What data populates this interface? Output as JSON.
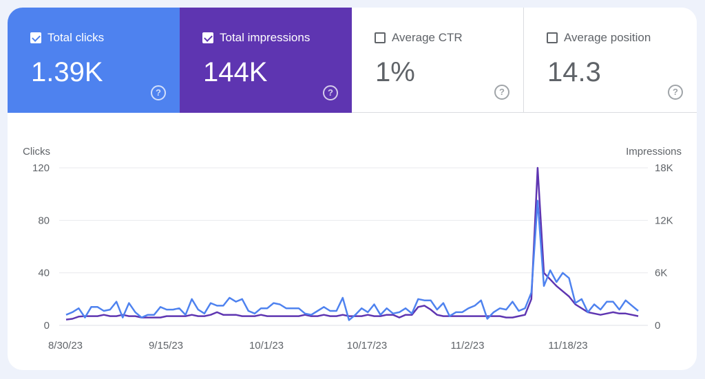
{
  "metrics": [
    {
      "label": "Total clicks",
      "value": "1.39K",
      "checked": true,
      "icon": "checkbox-checked-icon"
    },
    {
      "label": "Total impressions",
      "value": "144K",
      "checked": true,
      "icon": "checkbox-checked-icon"
    },
    {
      "label": "Average CTR",
      "value": "1%",
      "checked": false,
      "icon": "checkbox-empty-icon"
    },
    {
      "label": "Average position",
      "value": "14.3",
      "checked": false,
      "icon": "checkbox-empty-icon"
    }
  ],
  "help_icon": "help-circle-icon",
  "help_glyph": "?",
  "chart_data": {
    "type": "line",
    "left_axis_label": "Clicks",
    "right_axis_label": "Impressions",
    "left_ticks": [
      "0",
      "40",
      "80",
      "120"
    ],
    "left_range": [
      0,
      120
    ],
    "right_ticks": [
      "0",
      "6K",
      "12K",
      "18K"
    ],
    "right_range": [
      0,
      18000
    ],
    "x_ticks": [
      "8/30/23",
      "9/15/23",
      "10/1/23",
      "10/17/23",
      "11/2/23",
      "11/18/23"
    ],
    "grid": true,
    "colors": {
      "clicks": "#4e82ef",
      "impressions": "#5e35b1",
      "grid": "#e8eaed"
    },
    "series": [
      {
        "key": "clicks",
        "values": [
          8,
          10,
          13,
          6,
          14,
          14,
          11,
          12,
          18,
          6,
          17,
          10,
          6,
          8,
          8,
          14,
          12,
          12,
          13,
          8,
          20,
          12,
          9,
          17,
          15,
          15,
          21,
          18,
          20,
          11,
          9,
          13,
          13,
          17,
          16,
          13,
          13,
          13,
          9,
          8,
          11,
          14,
          11,
          11,
          21,
          4,
          8,
          13,
          10,
          16,
          8,
          13,
          9,
          10,
          13,
          9,
          20,
          19,
          19,
          12,
          17,
          7,
          10,
          10,
          13,
          15,
          19,
          5,
          10,
          13,
          12,
          18,
          11,
          13,
          25,
          95,
          30,
          42,
          33,
          40,
          36,
          17,
          20,
          10,
          16,
          12,
          18,
          18,
          12,
          19,
          15,
          11
        ]
      },
      {
        "key": "impressions",
        "values": [
          660,
          750,
          1000,
          1050,
          1050,
          1050,
          1200,
          1050,
          1050,
          1200,
          1050,
          1050,
          900,
          900,
          900,
          900,
          1050,
          1050,
          1050,
          1050,
          1200,
          1050,
          1050,
          1200,
          1500,
          1200,
          1200,
          1200,
          1050,
          1050,
          1050,
          1200,
          1050,
          1050,
          1050,
          1050,
          1050,
          1050,
          1200,
          1050,
          1050,
          1200,
          1050,
          1050,
          1200,
          1050,
          1050,
          1050,
          1200,
          1050,
          1050,
          1200,
          1200,
          900,
          1200,
          1200,
          2100,
          2250,
          1800,
          1200,
          1050,
          1050,
          1050,
          1050,
          1050,
          1050,
          1050,
          1050,
          1050,
          1050,
          900,
          900,
          1050,
          1200,
          3000,
          18000,
          6000,
          5250,
          4500,
          3900,
          3300,
          2400,
          1950,
          1500,
          1350,
          1200,
          1350,
          1500,
          1350,
          1350,
          1200,
          1050
        ]
      }
    ]
  }
}
